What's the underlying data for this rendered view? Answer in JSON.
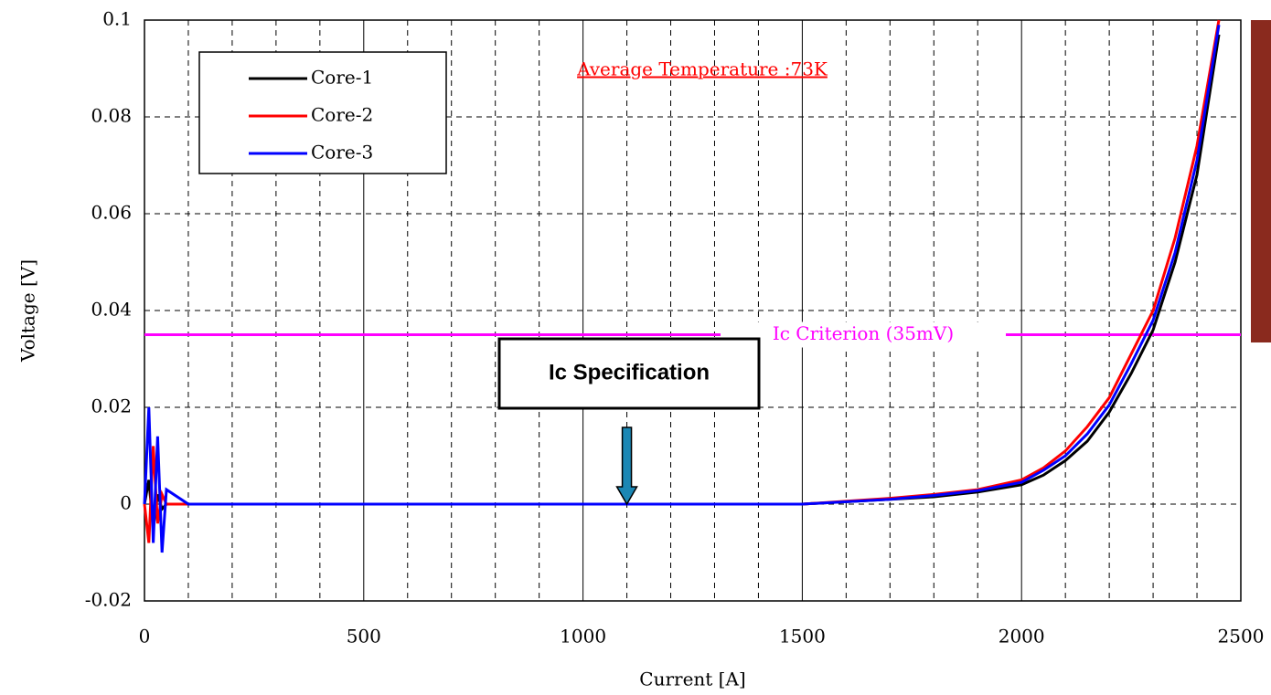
{
  "chart_data": {
    "type": "line",
    "x_label": "Current [A]",
    "y_label": "Voltage [V]",
    "x": [
      0,
      10,
      20,
      30,
      40,
      50,
      100,
      500,
      1000,
      1500,
      1700,
      1800,
      1900,
      2000,
      2050,
      2100,
      2150,
      2200,
      2250,
      2300,
      2350,
      2400,
      2450
    ],
    "series": [
      {
        "name": "Core-1",
        "color": "#000000",
        "values": [
          0,
          0.005,
          -0.005,
          0.002,
          -0.001,
          0,
          0,
          0,
          0,
          0,
          0.001,
          0.0015,
          0.0025,
          0.004,
          0.006,
          0.009,
          0.013,
          0.019,
          0.027,
          0.036,
          0.05,
          0.068,
          0.097
        ]
      },
      {
        "name": "Core-2",
        "color": "#ff0000",
        "values": [
          0,
          -0.008,
          0.012,
          -0.004,
          0.002,
          0,
          0,
          0,
          0,
          0,
          0.0012,
          0.002,
          0.003,
          0.005,
          0.0075,
          0.011,
          0.016,
          0.022,
          0.031,
          0.04,
          0.055,
          0.074,
          0.1
        ]
      },
      {
        "name": "Core-3",
        "color": "#0000ff",
        "values": [
          0,
          0.02,
          -0.008,
          0.014,
          -0.01,
          0.003,
          0,
          0,
          0,
          0,
          0.001,
          0.0018,
          0.0028,
          0.0045,
          0.007,
          0.01,
          0.0145,
          0.0205,
          0.029,
          0.038,
          0.052,
          0.071,
          0.099
        ]
      }
    ],
    "xlim": [
      0,
      2500
    ],
    "xticks": [
      0,
      500,
      1000,
      1500,
      2000,
      2500
    ],
    "ylim": [
      -0.02,
      0.1
    ],
    "yticks": [
      -0.02,
      0,
      0.02,
      0.04,
      0.06,
      0.08,
      0.1
    ],
    "grid": true,
    "legend": "upper left",
    "title": "Average Temperature :73K",
    "criterion": {
      "label": "Ic Criterion (35mV)",
      "y": 0.035,
      "color": "#ff00ff"
    },
    "specification": {
      "label": "Ic Specification",
      "x": 1100
    }
  }
}
